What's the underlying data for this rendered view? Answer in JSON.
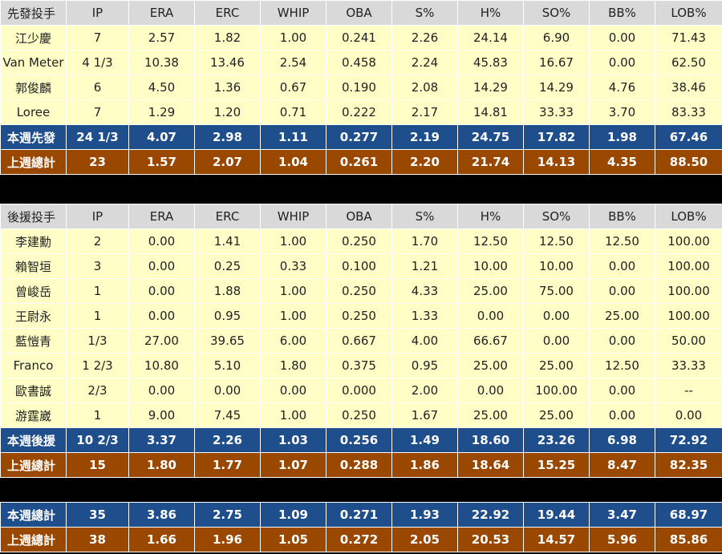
{
  "columns": [
    "IP",
    "ERA",
    "ERC",
    "WHIP",
    "OBA",
    "S%",
    "H%",
    "SO%",
    "BB%",
    "LOB%"
  ],
  "starters": {
    "header": "先發投手",
    "rows": [
      {
        "name": "江少慶",
        "vals": [
          "7",
          "2.57",
          "1.82",
          "1.00",
          "0.241",
          "2.26",
          "24.14",
          "6.90",
          "0.00",
          "71.43"
        ]
      },
      {
        "name": "Van Meter",
        "vals": [
          "4 1/3",
          "10.38",
          "13.46",
          "2.54",
          "0.458",
          "2.24",
          "45.83",
          "16.67",
          "0.00",
          "62.50"
        ]
      },
      {
        "name": "郭俊麟",
        "vals": [
          "6",
          "4.50",
          "1.36",
          "0.67",
          "0.190",
          "2.08",
          "14.29",
          "14.29",
          "4.76",
          "38.46"
        ]
      },
      {
        "name": "Loree",
        "vals": [
          "7",
          "1.29",
          "1.20",
          "0.71",
          "0.222",
          "2.17",
          "14.81",
          "33.33",
          "3.70",
          "83.33"
        ]
      }
    ],
    "this_week": {
      "name": "本週先發",
      "vals": [
        "24 1/3",
        "4.07",
        "2.98",
        "1.11",
        "0.277",
        "2.19",
        "24.75",
        "17.82",
        "1.98",
        "67.46"
      ]
    },
    "last_week": {
      "name": "上週總計",
      "vals": [
        "23",
        "1.57",
        "2.07",
        "1.04",
        "0.261",
        "2.20",
        "21.74",
        "14.13",
        "4.35",
        "88.50"
      ]
    }
  },
  "relievers": {
    "header": "後援投手",
    "rows": [
      {
        "name": "李建勳",
        "vals": [
          "2",
          "0.00",
          "1.41",
          "1.00",
          "0.250",
          "1.70",
          "12.50",
          "12.50",
          "12.50",
          "100.00"
        ]
      },
      {
        "name": "賴智垣",
        "vals": [
          "3",
          "0.00",
          "0.25",
          "0.33",
          "0.100",
          "1.21",
          "10.00",
          "10.00",
          "0.00",
          "100.00"
        ]
      },
      {
        "name": "曾峻岳",
        "vals": [
          "1",
          "0.00",
          "1.88",
          "1.00",
          "0.250",
          "4.33",
          "25.00",
          "75.00",
          "0.00",
          "100.00"
        ]
      },
      {
        "name": "王尉永",
        "vals": [
          "1",
          "0.00",
          "0.95",
          "1.00",
          "0.250",
          "1.33",
          "0.00",
          "0.00",
          "25.00",
          "100.00"
        ]
      },
      {
        "name": "藍愷青",
        "vals": [
          "1/3",
          "27.00",
          "39.65",
          "6.00",
          "0.667",
          "4.00",
          "66.67",
          "0.00",
          "0.00",
          "50.00"
        ]
      },
      {
        "name": "Franco",
        "vals": [
          "1 2/3",
          "10.80",
          "5.10",
          "1.80",
          "0.375",
          "0.95",
          "25.00",
          "25.00",
          "12.50",
          "33.33"
        ]
      },
      {
        "name": "歐書誠",
        "vals": [
          "2/3",
          "0.00",
          "0.00",
          "0.00",
          "0.000",
          "2.00",
          "0.00",
          "100.00",
          "0.00",
          "--"
        ]
      },
      {
        "name": "游霆崴",
        "vals": [
          "1",
          "9.00",
          "7.45",
          "1.00",
          "0.250",
          "1.67",
          "25.00",
          "25.00",
          "0.00",
          "0.00"
        ]
      }
    ],
    "this_week": {
      "name": "本週後援",
      "vals": [
        "10 2/3",
        "3.37",
        "2.26",
        "1.03",
        "0.256",
        "1.49",
        "18.60",
        "23.26",
        "6.98",
        "72.92"
      ]
    },
    "last_week": {
      "name": "上週總計",
      "vals": [
        "15",
        "1.80",
        "1.77",
        "1.07",
        "0.288",
        "1.86",
        "18.64",
        "15.25",
        "8.47",
        "82.35"
      ]
    }
  },
  "totals": {
    "this_week": {
      "name": "本週總計",
      "vals": [
        "35",
        "3.86",
        "2.75",
        "1.09",
        "0.271",
        "1.93",
        "22.92",
        "19.44",
        "3.47",
        "68.97"
      ]
    },
    "last_week": {
      "name": "上週總計",
      "vals": [
        "38",
        "1.66",
        "1.96",
        "1.05",
        "0.272",
        "2.05",
        "20.53",
        "14.57",
        "5.96",
        "85.86"
      ]
    }
  }
}
